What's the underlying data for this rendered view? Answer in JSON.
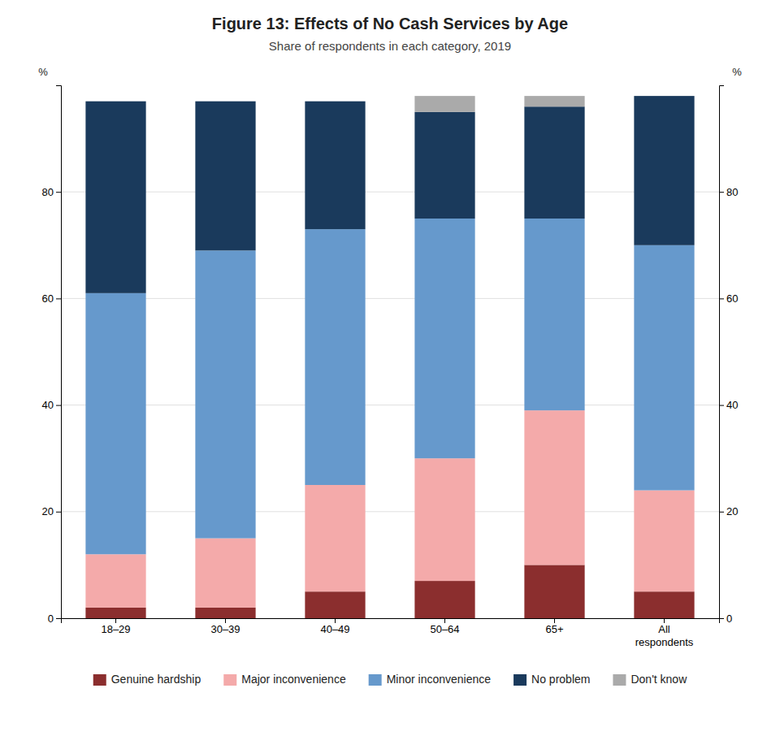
{
  "chart_data": {
    "type": "bar",
    "stacked": true,
    "title": "Figure 13: Effects of No Cash Services by Age",
    "subtitle": "Share of respondents in each category, 2019",
    "categories": [
      "18–29",
      "30–39",
      "40–49",
      "50–64",
      "65+",
      "All\nrespondents"
    ],
    "series": [
      {
        "name": "Genuine hardship",
        "color": "#8B2E2E",
        "values": [
          2,
          2,
          5,
          7,
          10,
          5
        ]
      },
      {
        "name": "Major inconvenience",
        "color": "#F4AAAA",
        "values": [
          10,
          13,
          20,
          23,
          29,
          19
        ]
      },
      {
        "name": "Minor inconvenience",
        "color": "#6699CC",
        "values": [
          49,
          54,
          48,
          45,
          36,
          46
        ]
      },
      {
        "name": "No problem",
        "color": "#1A3A5C",
        "values": [
          36,
          28,
          24,
          20,
          21,
          28
        ]
      },
      {
        "name": "Don't know",
        "color": "#AAAAAA",
        "values": [
          0,
          0,
          0,
          3,
          2,
          0
        ]
      }
    ],
    "ylabel": "%",
    "y2label": "%",
    "ylim": [
      0,
      100
    ],
    "yticks": [
      0,
      20,
      40,
      60,
      80
    ],
    "y2lim": [
      0,
      100
    ],
    "y2ticks": [
      0,
      20,
      40,
      60,
      80
    ],
    "grid": true,
    "legend": "bottom"
  }
}
